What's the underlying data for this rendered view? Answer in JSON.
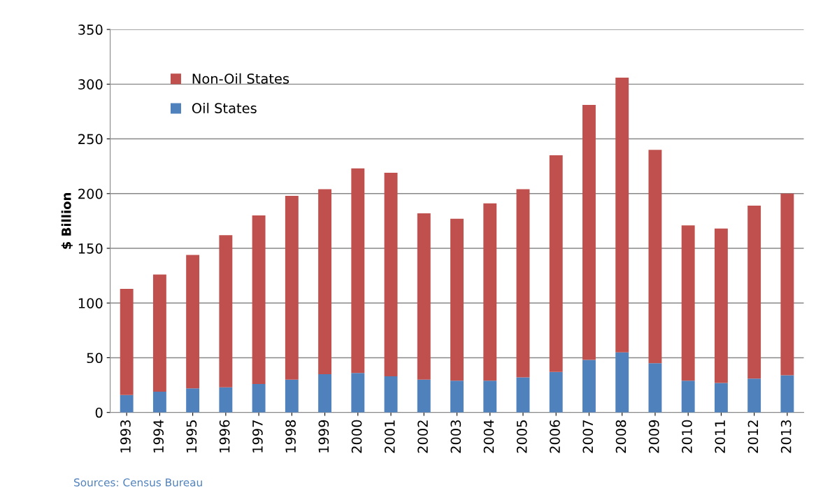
{
  "chart_data": {
    "type": "bar",
    "stacked": true,
    "ylabel": "$ Billion",
    "categories": [
      "1993",
      "1994",
      "1995",
      "1996",
      "1997",
      "1998",
      "1999",
      "2000",
      "2001",
      "2002",
      "2003",
      "2004",
      "2005",
      "2006",
      "2007",
      "2008",
      "2009",
      "2010",
      "2011",
      "2012",
      "2013"
    ],
    "series": [
      {
        "name": "Oil States",
        "color": "#4f81bd",
        "values": [
          16,
          19,
          22,
          23,
          26,
          30,
          35,
          36,
          33,
          30,
          29,
          29,
          32,
          37,
          48,
          55,
          45,
          29,
          27,
          31,
          34
        ]
      },
      {
        "name": "Non-Oil States",
        "color": "#c0504d",
        "values": [
          97,
          107,
          122,
          139,
          154,
          168,
          169,
          187,
          186,
          152,
          148,
          162,
          172,
          198,
          233,
          251,
          195,
          142,
          141,
          158,
          166
        ]
      }
    ],
    "ylim": [
      0,
      350
    ],
    "yticks": [
      0,
      50,
      100,
      150,
      200,
      250,
      300,
      350
    ],
    "grid": "y",
    "legend": "top left",
    "annotations": [
      "Sources: Census Bureau"
    ]
  }
}
